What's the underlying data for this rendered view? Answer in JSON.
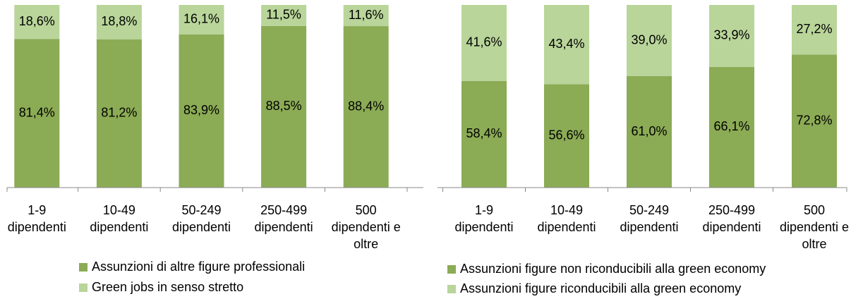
{
  "chart_data": [
    {
      "type": "bar",
      "stacked": true,
      "categories": [
        "1-9 dipendenti",
        "10-49 dipendenti",
        "50-249 dipendenti",
        "250-499 dipendenti",
        "500 dipendenti e oltre"
      ],
      "series": [
        {
          "name": "Assunzioni di altre figure professionali",
          "color": "#8bab55",
          "values": [
            81.4,
            81.2,
            83.9,
            88.5,
            88.4
          ],
          "value_labels": [
            "81,4%",
            "81,2%",
            "83,9%",
            "88,5%",
            "88,4%"
          ]
        },
        {
          "name": "Green jobs in senso stretto",
          "color": "#b9d59a",
          "values": [
            18.6,
            18.8,
            16.1,
            11.5,
            11.6
          ],
          "value_labels": [
            "18,6%",
            "18,8%",
            "16,1%",
            "11,5%",
            "11,6%"
          ]
        }
      ],
      "ylim": [
        0,
        100
      ]
    },
    {
      "type": "bar",
      "stacked": true,
      "categories": [
        "1-9 dipendenti",
        "10-49 dipendenti",
        "50-249 dipendenti",
        "250-499 dipendenti",
        "500 dipendenti e oltre"
      ],
      "series": [
        {
          "name": "Assunzioni figure non riconducibili alla green economy",
          "color": "#8bab55",
          "values": [
            58.4,
            56.6,
            61.0,
            66.1,
            72.8
          ],
          "value_labels": [
            "58,4%",
            "56,6%",
            "61,0%",
            "66,1%",
            "72,8%"
          ]
        },
        {
          "name": "Assunzioni figure riconducibili alla green economy",
          "color": "#b9d59a",
          "values": [
            41.6,
            43.4,
            39.0,
            33.9,
            27.2
          ],
          "value_labels": [
            "41,6%",
            "43,4%",
            "39,0%",
            "33,9%",
            "27,2%"
          ]
        }
      ],
      "ylim": [
        0,
        100
      ]
    }
  ]
}
